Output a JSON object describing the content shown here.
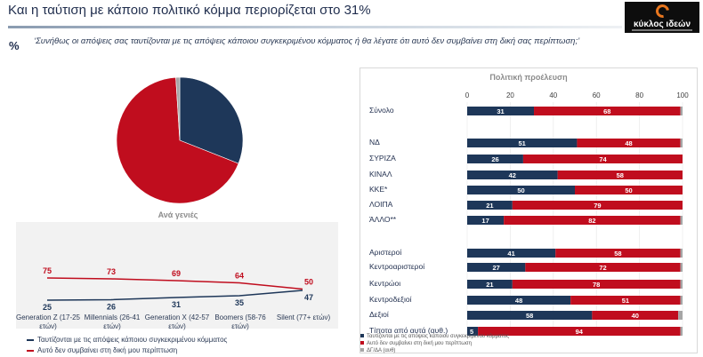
{
  "header": {
    "title": "Και η ταύτιση με κάποιο πολιτικό κόμμα περιορίζεται στο 31%",
    "percent_symbol": "%",
    "question": "‘Συνήθως οι απόψεις σας ταυτίζονται με τις απόψεις κάποιου συγκεκριμένου κόμματος ή θα λέγατε ότι αυτό δεν συμβαίνει στη δική σας περίπτωση;’"
  },
  "logo": {
    "text": "κύκλος ιδεών"
  },
  "colors": {
    "navy": "#1e3759",
    "red": "#c00d1e",
    "gray": "#a6a6a6"
  },
  "chart_data": [
    {
      "type": "pie",
      "slices": [
        {
          "name": "Ταυτίζονται με τις απόψεις κάποιου συγκεκριμένου κόμματος",
          "value": 31,
          "color": "#1e3759"
        },
        {
          "name": "Αυτό δεν συμβαίνει στη δική μου περίπτωση",
          "value": 68,
          "color": "#c00d1e"
        },
        {
          "name": "ΔΓ/ΔΑ (αυθ)",
          "value": 1,
          "color": "#a6a6a6"
        }
      ]
    },
    {
      "type": "line",
      "title": "Ανά γενιές",
      "categories": [
        "Generation Z (17-25 ετών)",
        "Millennials (26-41 ετών)",
        "Generation X (42-57 ετών)",
        "Boomers (58-76 ετών)",
        "Silent (77+ ετών)"
      ],
      "series": [
        {
          "name": "Ταυτίζονται με τις απόψεις κάποιου συγκεκριμένου κόμματος",
          "values": [
            25,
            26,
            31,
            35,
            47
          ],
          "color": "#1e3759"
        },
        {
          "name": "Αυτό δεν συμβαίνει στη δική μου περίπτωση",
          "values": [
            75,
            73,
            69,
            64,
            50
          ],
          "color": "#c00d1e"
        }
      ],
      "ylim": [
        0,
        100
      ]
    },
    {
      "type": "bar",
      "orientation": "horizontal",
      "stacked": true,
      "title": "Πολιτική προέλευση",
      "xlim": [
        0,
        100
      ],
      "ticks": [
        0,
        20,
        40,
        60,
        80,
        100
      ],
      "rows": [
        {
          "label": "Σύνολο",
          "values": [
            31,
            68,
            1
          ]
        },
        {
          "label": "ΝΔ",
          "values": [
            51,
            48,
            1
          ]
        },
        {
          "label": "ΣΥΡΙΖΑ",
          "values": [
            26,
            74,
            0
          ]
        },
        {
          "label": "ΚΙΝΑΛ",
          "values": [
            42,
            58,
            0
          ]
        },
        {
          "label": "ΚΚΕ*",
          "values": [
            50,
            50,
            0
          ]
        },
        {
          "label": "ΛΟΙΠΑ",
          "values": [
            21,
            79,
            0
          ]
        },
        {
          "label": "ΆΛΛΟ**",
          "values": [
            17,
            82,
            1
          ]
        },
        {
          "label": "Αριστεροί",
          "values": [
            41,
            58,
            1
          ]
        },
        {
          "label": "Κεντροαριστεροί",
          "values": [
            27,
            72,
            1
          ]
        },
        {
          "label": "Κεντρώοι",
          "values": [
            21,
            78,
            1
          ]
        },
        {
          "label": "Κεντροδεξιοί",
          "values": [
            48,
            51,
            1
          ]
        },
        {
          "label": "Δεξιοί",
          "values": [
            58,
            40,
            2
          ]
        },
        {
          "label": "Τίποτα από αυτά (αυθ.)",
          "values": [
            5,
            94,
            1
          ]
        }
      ],
      "legend": [
        "Ταυτίζονται με τις απόψεις κάποιου συγκεκριμένου κόμματος",
        "Αυτό δεν συμβαίνει στη δική μου περίπτωση",
        "ΔΓ/ΔΑ (αυθ)"
      ]
    }
  ]
}
